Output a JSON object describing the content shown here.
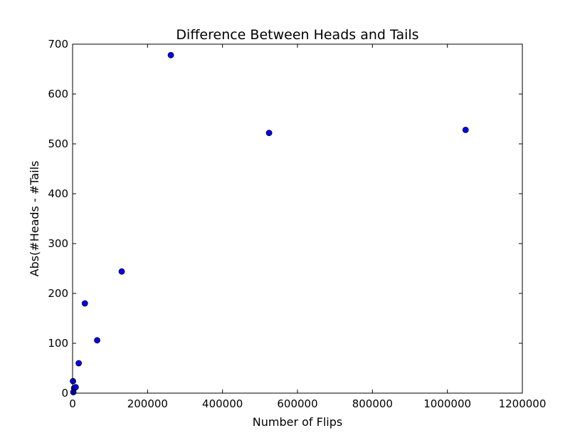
{
  "chart_data": {
    "type": "scatter",
    "title": "Difference Between Heads and Tails",
    "xlabel": "Number of Flips",
    "ylabel": "Abs(#Heads - #Tails",
    "xlim": [
      0,
      1200000
    ],
    "ylim": [
      0,
      700
    ],
    "x_ticks": [
      0,
      200000,
      400000,
      600000,
      800000,
      1000000,
      1200000
    ],
    "y_ticks": [
      0,
      100,
      200,
      300,
      400,
      500,
      600,
      700
    ],
    "x_tick_labels": [
      "0",
      "200000",
      "400000",
      "600000",
      "800000",
      "1000000",
      "1200000"
    ],
    "y_tick_labels": [
      "0",
      "100",
      "200",
      "300",
      "400",
      "500",
      "600",
      "700"
    ],
    "grid": false,
    "marker_color": "#0000ff",
    "points": [
      {
        "x": 1024,
        "y": 24
      },
      {
        "x": 2048,
        "y": 2
      },
      {
        "x": 4096,
        "y": 10
      },
      {
        "x": 8192,
        "y": 12
      },
      {
        "x": 16384,
        "y": 60
      },
      {
        "x": 32768,
        "y": 180
      },
      {
        "x": 65536,
        "y": 106
      },
      {
        "x": 131072,
        "y": 244
      },
      {
        "x": 262144,
        "y": 678
      },
      {
        "x": 524288,
        "y": 522
      },
      {
        "x": 1048576,
        "y": 528
      }
    ]
  }
}
